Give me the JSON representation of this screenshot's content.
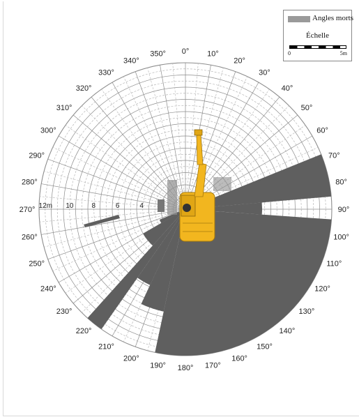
{
  "legend": {
    "blind_label": "Angles morts",
    "scale_title": "Échelle",
    "scale_start": "0",
    "scale_end": "5m"
  },
  "angle_labels": [
    "0°",
    "10°",
    "20°",
    "30°",
    "40°",
    "50°",
    "60°",
    "70°",
    "80°",
    "90°",
    "100°",
    "110°",
    "120°",
    "130°",
    "140°",
    "150°",
    "160°",
    "170°",
    "180°",
    "190°",
    "200°",
    "210°",
    "220°",
    "230°",
    "240°",
    "250°",
    "260°",
    "270°",
    "280°",
    "290°",
    "300°",
    "310°",
    "320°",
    "330°",
    "340°",
    "350°"
  ],
  "distance_labels": [
    "12m",
    "10",
    "8",
    "6",
    "4"
  ],
  "blind_spot_color": "#5f5f5f",
  "excavator_color": "#f2b61f"
}
